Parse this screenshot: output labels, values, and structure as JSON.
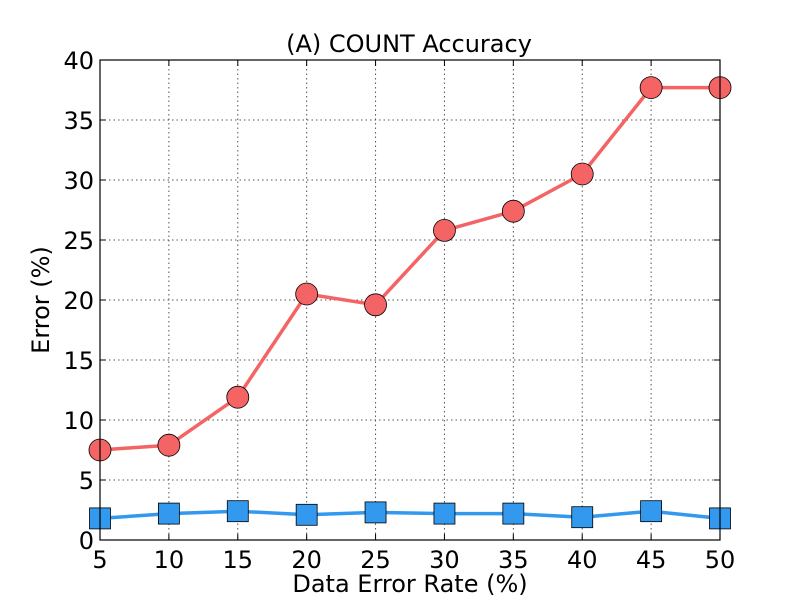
{
  "chart_data": {
    "type": "line",
    "title": "(A) COUNT Accuracy",
    "xlabel": "Data Error Rate (%)",
    "ylabel": "Error (%)",
    "xlim": [
      5,
      50
    ],
    "ylim": [
      0,
      40
    ],
    "grid": true,
    "x_ticks": [
      5,
      10,
      15,
      20,
      25,
      30,
      35,
      40,
      45,
      50
    ],
    "y_ticks": [
      0,
      5,
      10,
      15,
      20,
      25,
      30,
      35,
      40
    ],
    "x": [
      5,
      10,
      15,
      20,
      25,
      30,
      35,
      40,
      45,
      50
    ],
    "series": [
      {
        "color": "#f46464",
        "marker": "circle",
        "values": [
          7.5,
          7.9,
          11.9,
          20.5,
          19.6,
          25.8,
          27.4,
          30.5,
          37.7,
          37.7
        ]
      },
      {
        "color": "#3399ee",
        "marker": "square",
        "values": [
          1.8,
          2.2,
          2.4,
          2.1,
          2.3,
          2.2,
          2.2,
          1.9,
          2.4,
          1.8
        ]
      }
    ]
  }
}
